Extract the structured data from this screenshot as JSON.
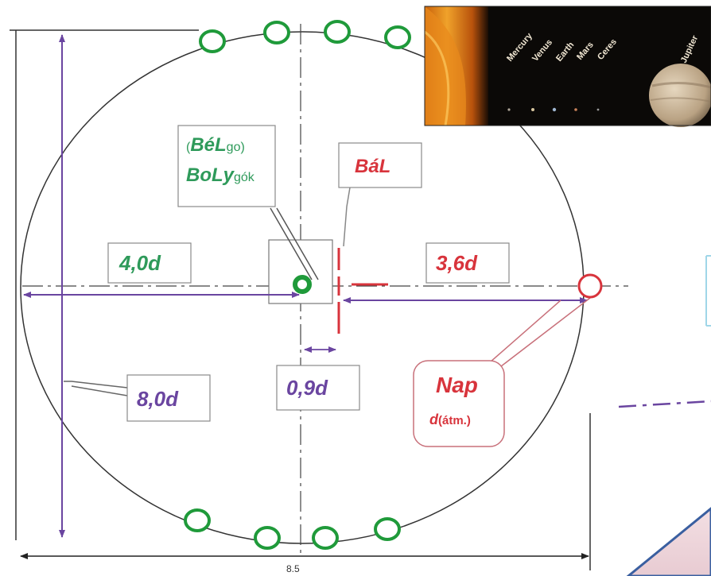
{
  "labels": {
    "belgo_open": "(",
    "belgo_main": "BéL",
    "belgo_sub": "go",
    "belgo_close": ")",
    "bolygok_main": "BoLy",
    "bolygok_sub": "gók",
    "bal": "BáL",
    "dist_left": "4,0d",
    "dist_right": "3,6d",
    "offset": "0,9d",
    "height": "8,0d",
    "nap_main": "Nap",
    "nap_sub_d": "d",
    "nap_sub_rest": "(átm.)",
    "bottom_dim": "8.5"
  },
  "planets": [
    "Mercury",
    "Venus",
    "Earth",
    "Mars",
    "Ceres",
    "Jupiter"
  ],
  "colors": {
    "green": "#2e9a5a",
    "purple": "#6a45a0",
    "red": "#d8343c",
    "ring_green": "#1f9a3a",
    "outline": "#333333"
  }
}
